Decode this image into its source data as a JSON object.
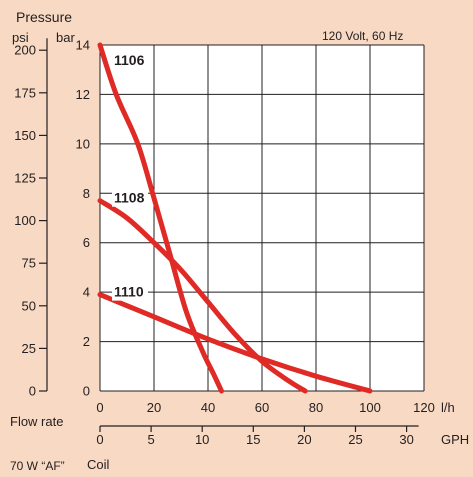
{
  "chart_data": {
    "type": "line",
    "title": "",
    "subtitle": "120 Volt, 60 Hz",
    "ylabel": "Pressure",
    "y_units": [
      "psi",
      "bar"
    ],
    "xlabel": "Flow rate",
    "x_units": [
      "l/h",
      "GPH"
    ],
    "footnote": [
      "70 W “AF”",
      "Coil"
    ],
    "xlim": [
      0,
      120
    ],
    "ylim": [
      0,
      14
    ],
    "grid": true,
    "x_ticks_lh": [
      0,
      20,
      40,
      60,
      80,
      100,
      120
    ],
    "y_ticks_bar": [
      0,
      2,
      4,
      6,
      8,
      10,
      12,
      14
    ],
    "y_ticks_psi": [
      0,
      25,
      50,
      75,
      100,
      125,
      150,
      175,
      200
    ],
    "x_ticks_gph": [
      0,
      5,
      10,
      15,
      20,
      25,
      30
    ],
    "colors": {
      "series": "#e02a26",
      "background": "#f8d9c4",
      "plot": "#ffffff",
      "grid": "#231f20"
    },
    "series": [
      {
        "name": "1106",
        "x": [
          0,
          6,
          14,
          20,
          26,
          32,
          38,
          42,
          45
        ],
        "y": [
          14.0,
          12.0,
          10.0,
          7.8,
          5.5,
          3.2,
          1.6,
          0.7,
          0.0
        ]
      },
      {
        "name": "1108",
        "x": [
          0,
          10,
          20,
          30,
          40,
          50,
          60,
          70,
          76
        ],
        "y": [
          7.7,
          7.0,
          6.0,
          4.9,
          3.6,
          2.3,
          1.2,
          0.4,
          0.0
        ]
      },
      {
        "name": "1110",
        "x": [
          0,
          20,
          40,
          60,
          80,
          100
        ],
        "y": [
          3.9,
          3.0,
          2.1,
          1.3,
          0.6,
          0.0
        ]
      }
    ]
  }
}
